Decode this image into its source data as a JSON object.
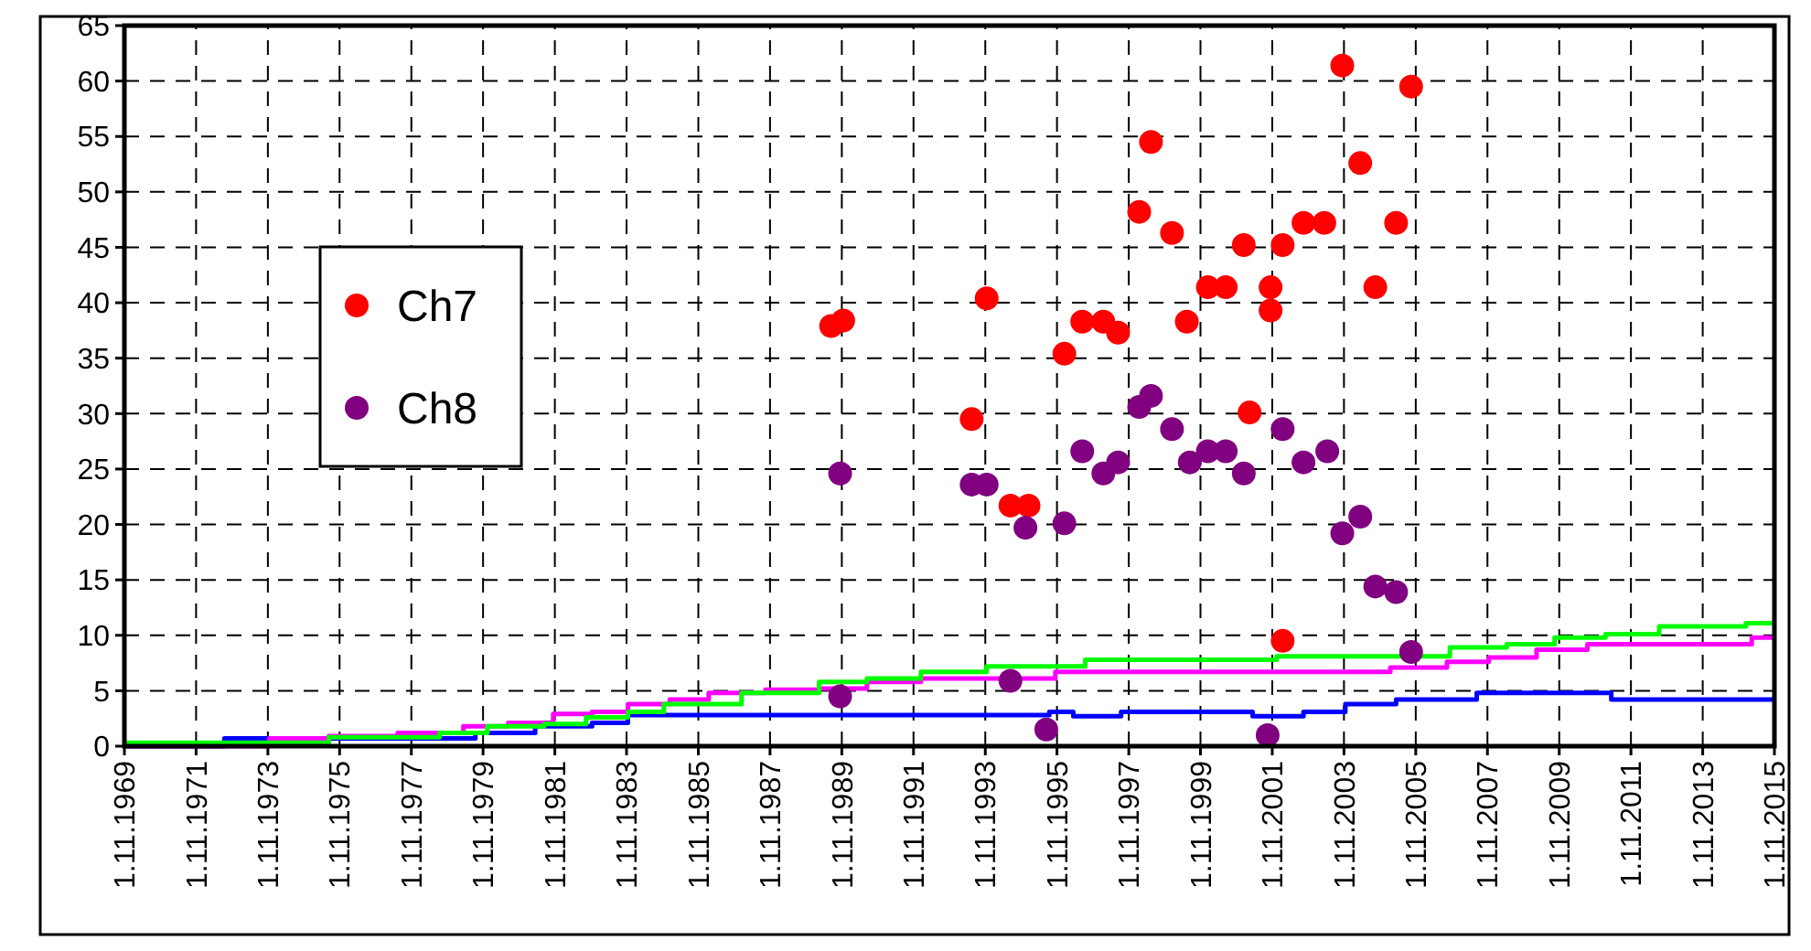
{
  "chart_data": {
    "type": "scatter",
    "xlim": [
      "1969-11-01",
      "2015-11-01"
    ],
    "ylim": [
      0,
      65
    ],
    "xticks": [
      {
        "value": "1969-11-01",
        "label": "1.11.1969"
      },
      {
        "value": "1971-11-01",
        "label": "1.11.1971"
      },
      {
        "value": "1973-11-01",
        "label": "1.11.1973"
      },
      {
        "value": "1975-11-01",
        "label": "1.11.1975"
      },
      {
        "value": "1977-11-01",
        "label": "1.11.1977"
      },
      {
        "value": "1979-11-01",
        "label": "1.11.1979"
      },
      {
        "value": "1981-11-01",
        "label": "1.11.1981"
      },
      {
        "value": "1983-11-01",
        "label": "1.11.1983"
      },
      {
        "value": "1985-11-01",
        "label": "1.11.1985"
      },
      {
        "value": "1987-11-01",
        "label": "1.11.1987"
      },
      {
        "value": "1989-11-01",
        "label": "1.11.1989"
      },
      {
        "value": "1991-11-01",
        "label": "1.11.1991"
      },
      {
        "value": "1993-11-01",
        "label": "1.11.1993"
      },
      {
        "value": "1995-11-01",
        "label": "1.11.1995"
      },
      {
        "value": "1997-11-01",
        "label": "1.11.1997"
      },
      {
        "value": "1999-11-01",
        "label": "1.11.1999"
      },
      {
        "value": "2001-11-01",
        "label": "1.11.2001"
      },
      {
        "value": "2003-11-01",
        "label": "1.11.2003"
      },
      {
        "value": "2005-11-01",
        "label": "1.11.2005"
      },
      {
        "value": "2007-11-01",
        "label": "1.11.2007"
      },
      {
        "value": "2009-11-01",
        "label": "1.11.2009"
      },
      {
        "value": "2011-11-01",
        "label": "1.11.2011"
      },
      {
        "value": "2013-11-01",
        "label": "1.11.2013"
      },
      {
        "value": "2015-11-01",
        "label": "1.11.2015"
      }
    ],
    "yticks": [
      0,
      5,
      10,
      15,
      20,
      25,
      30,
      35,
      40,
      45,
      50,
      55,
      60,
      65
    ],
    "grid": true,
    "legend": "left",
    "series": [
      {
        "type": "step",
        "color": "#0000ff",
        "x": [
          "1969-11-01",
          "1972-08",
          "1979-08",
          "1981-04",
          "1982-11",
          "1983-11",
          "1995-08",
          "1996-04",
          "1997-08",
          "2001-04",
          "2002-09",
          "2003-11",
          "2005-04",
          "2007-07",
          "2011-04",
          "2015-11-01"
        ],
        "values": [
          0,
          0.7,
          1.2,
          1.8,
          2.1,
          2.8,
          3.1,
          2.7,
          3.1,
          2.7,
          3.1,
          3.8,
          4.2,
          4.8,
          4.2,
          4.2
        ]
      },
      {
        "type": "step",
        "color": "#ff00ff",
        "x": [
          "1969-11-01",
          "1973-11",
          "1975-07",
          "1977-06",
          "1979-04",
          "1980-07",
          "1981-10",
          "1982-11",
          "1983-11",
          "1985-01",
          "1986-02",
          "1987-09",
          "1989-03",
          "1990-07",
          "1992-01",
          "1995-10",
          "2005-02",
          "2006-09",
          "2007-11",
          "2009-03",
          "2010-08",
          "2015-03",
          "2015-11-01"
        ],
        "values": [
          0,
          0.7,
          0.9,
          1.2,
          1.8,
          2.1,
          2.9,
          3.1,
          3.8,
          4.2,
          4.8,
          5.1,
          5.2,
          5.8,
          6.1,
          6.7,
          7.1,
          7.6,
          8.0,
          8.7,
          9.2,
          9.8,
          9.8
        ]
      },
      {
        "type": "step",
        "color": "#00ff00",
        "x": [
          "1969-11-01",
          "1975-07",
          "1978-08",
          "1979-12",
          "1981-07",
          "1982-09",
          "1983-11",
          "1984-11",
          "1987-01",
          "1989-03",
          "1990-07",
          "1992-01",
          "1993-11",
          "1996-08",
          "2001-12",
          "2006-10",
          "2008-05",
          "2009-09",
          "2011-02",
          "2012-08",
          "2015-01",
          "2015-11-01"
        ],
        "values": [
          0.3,
          0.8,
          1.2,
          1.8,
          2.0,
          2.6,
          3.1,
          3.8,
          4.8,
          5.8,
          6.1,
          6.7,
          7.2,
          7.8,
          8.1,
          8.9,
          9.2,
          9.8,
          10.1,
          10.8,
          11.1,
          11.1
        ]
      },
      {
        "name": "Ch7",
        "color": "#ff0000",
        "marker": "circle",
        "x": [
          "1989-07",
          "1989-11",
          "1993-11",
          "1993-06",
          "1994-07",
          "1995-01",
          "1996-01",
          "1996-07",
          "1997-02",
          "1997-07",
          "1998-02",
          "1998-06",
          "1999-01",
          "1999-06",
          "2000-01",
          "2000-07",
          "2001-01",
          "2001-03",
          "2001-10",
          "2001-10",
          "2002-02",
          "2002-02",
          "2002-09",
          "2003-04",
          "2003-10",
          "2004-04",
          "2004-09",
          "2005-04",
          "2005-09"
        ],
        "values": [
          37.9,
          38.4,
          40.4,
          29.5,
          21.7,
          21.7,
          35.4,
          38.3,
          38.3,
          37.3,
          48.2,
          54.5,
          46.3,
          38.3,
          41.4,
          41.4,
          45.2,
          30.1,
          41.4,
          39.3,
          45.2,
          9.5,
          47.2,
          47.2,
          61.4,
          52.6,
          41.4,
          47.2,
          59.5
        ]
      },
      {
        "name": "Ch8",
        "color": "#800080",
        "marker": "circle",
        "x": [
          "1989-10",
          "1989-10",
          "1993-06",
          "1993-11",
          "1994-12",
          "1994-07",
          "1995-07",
          "1996-01",
          "1996-07",
          "1997-02",
          "1997-07",
          "1998-02",
          "1998-06",
          "1999-01",
          "1999-07",
          "2000-01",
          "2000-07",
          "2001-01",
          "2001-09",
          "2002-02",
          "2002-09",
          "2003-05",
          "2003-10",
          "2004-04",
          "2004-09",
          "2005-04",
          "2005-09"
        ],
        "values": [
          24.6,
          4.5,
          23.6,
          23.6,
          19.7,
          5.9,
          1.5,
          20.1,
          26.6,
          24.6,
          25.6,
          30.6,
          31.6,
          28.6,
          25.6,
          26.6,
          26.6,
          24.6,
          1.0,
          28.6,
          25.6,
          26.6,
          19.2,
          20.7,
          14.4,
          13.9,
          8.5
        ]
      }
    ]
  }
}
